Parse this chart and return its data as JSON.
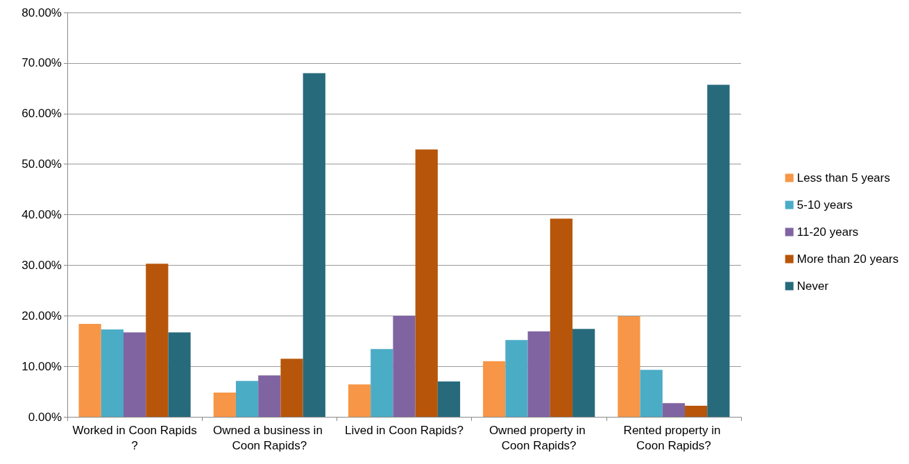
{
  "chart_data": {
    "type": "bar",
    "categories": [
      "Worked in Coon Rapids?",
      "Owned a business in Coon Rapids?",
      "Lived in Coon Rapids?",
      "Owned property in Coon Rapids?",
      "Rented property in Coon Rapids?"
    ],
    "series": [
      {
        "name": "Less than 5 years",
        "color": "#f79646",
        "values": [
          18.4,
          4.8,
          6.4,
          11.0,
          19.9
        ]
      },
      {
        "name": "5-10 years",
        "color": "#4bacc6",
        "values": [
          17.3,
          7.1,
          13.4,
          15.2,
          9.3
        ]
      },
      {
        "name": "11-20 years",
        "color": "#8064a2",
        "values": [
          16.7,
          8.2,
          20.0,
          16.9,
          2.7
        ]
      },
      {
        "name": "More than 20 years",
        "color": "#b7560a",
        "values": [
          30.3,
          11.5,
          52.9,
          39.2,
          2.2
        ]
      },
      {
        "name": "Never",
        "color": "#276a7c",
        "values": [
          16.7,
          68.0,
          7.0,
          17.4,
          65.7
        ]
      }
    ],
    "ylim": [
      0,
      80
    ],
    "yticks": [
      {
        "value": 0,
        "label": "0.00%"
      },
      {
        "value": 10,
        "label": "10.00%"
      },
      {
        "value": 20,
        "label": "20.00%"
      },
      {
        "value": 30,
        "label": "30.00%"
      },
      {
        "value": 40,
        "label": "40.00%"
      },
      {
        "value": 50,
        "label": "50.00%"
      },
      {
        "value": 60,
        "label": "60.00%"
      },
      {
        "value": 70,
        "label": "70.00%"
      },
      {
        "value": 80,
        "label": "80.00%"
      }
    ],
    "grid": "y",
    "legend": "right"
  }
}
